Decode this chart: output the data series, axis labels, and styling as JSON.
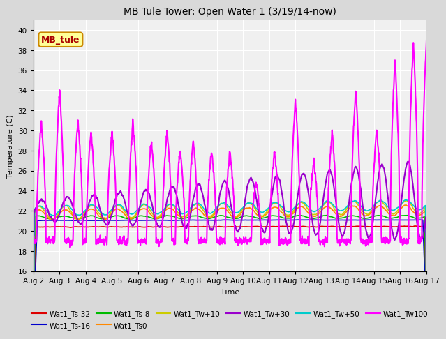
{
  "title": "MB Tule Tower: Open Water 1 (3/19/14-now)",
  "xlabel": "Time",
  "ylabel": "Temperature (C)",
  "ylim": [
    16,
    41
  ],
  "yticks": [
    16,
    18,
    20,
    22,
    24,
    26,
    28,
    30,
    32,
    34,
    36,
    38,
    40
  ],
  "xtick_labels": [
    "Aug 2",
    "Aug 3",
    "Aug 4",
    "Aug 5",
    "Aug 6",
    "Aug 7",
    "Aug 8",
    "Aug 9",
    "Aug 10",
    "Aug 11",
    "Aug 12",
    "Aug 13",
    "Aug 14",
    "Aug 15",
    "Aug 16",
    "Aug 17"
  ],
  "series": {
    "Wat1_Ts-32": {
      "color": "#dd0000",
      "lw": 1.2
    },
    "Wat1_Ts-16": {
      "color": "#0000cc",
      "lw": 1.2
    },
    "Wat1_Ts-8": {
      "color": "#00bb00",
      "lw": 1.2
    },
    "Wat1_Ts0": {
      "color": "#ff8800",
      "lw": 1.2
    },
    "Wat1_Tw+10": {
      "color": "#cccc00",
      "lw": 1.2
    },
    "Wat1_Tw+30": {
      "color": "#9900cc",
      "lw": 1.5
    },
    "Wat1_Tw+50": {
      "color": "#00cccc",
      "lw": 1.2
    },
    "Wat1_Tw100": {
      "color": "#ff00ff",
      "lw": 1.5
    }
  },
  "annotation_box": {
    "text": "MB_tule",
    "facecolor": "#ffff99",
    "edgecolor": "#cc8800",
    "textcolor": "#aa0000",
    "fontsize": 9
  },
  "bg_color": "#d9d9d9",
  "plot_bg_color": "#f0f0f0"
}
